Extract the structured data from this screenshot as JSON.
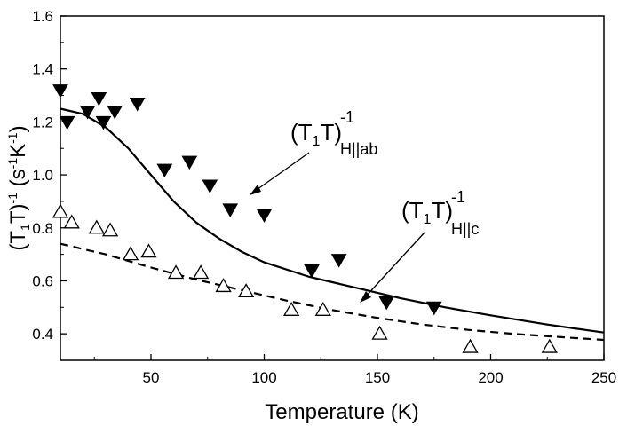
{
  "chart_data": {
    "type": "scatter",
    "xlabel": "Temperature (K)",
    "ylabel": {
      "base": "(T",
      "sub1": "1",
      "mid": "T)",
      "sup1": "-1",
      "unit_open": " (s",
      "sup2": "-1",
      "unit_k": "K",
      "sup3": "-1",
      "unit_close": ")"
    },
    "xlim": [
      10,
      250
    ],
    "ylim": [
      0.3,
      1.6
    ],
    "xticks": [
      50,
      100,
      150,
      200,
      250
    ],
    "yticks": [
      0.4,
      0.6,
      0.8,
      1.0,
      1.2,
      1.4,
      1.6
    ],
    "ytick_labels": [
      "0.4",
      "0.6",
      "0.8",
      "1.0",
      "1.2",
      "1.4",
      "1.6"
    ],
    "xtick_labels": [
      "50",
      "100",
      "150",
      "200",
      "250"
    ],
    "series": [
      {
        "name": "(T1T)^-1 H||ab",
        "marker": "filled-down-triangle",
        "x": [
          10,
          13,
          22,
          27,
          29,
          34,
          44,
          56,
          67,
          76,
          85,
          100,
          121,
          133,
          154,
          175
        ],
        "y": [
          1.32,
          1.2,
          1.24,
          1.29,
          1.2,
          1.24,
          1.27,
          1.02,
          1.05,
          0.96,
          0.87,
          0.85,
          0.64,
          0.68,
          0.52,
          0.5
        ]
      },
      {
        "name": "(T1T)^-1 H||c",
        "marker": "open-up-triangle",
        "x": [
          10,
          15,
          26,
          32,
          41,
          49,
          61,
          72,
          82,
          92,
          112,
          126,
          151,
          191,
          226
        ],
        "y": [
          0.86,
          0.82,
          0.8,
          0.79,
          0.7,
          0.71,
          0.63,
          0.63,
          0.58,
          0.56,
          0.49,
          0.49,
          0.4,
          0.35,
          0.35
        ]
      }
    ],
    "fits": [
      {
        "name": "fit H||ab",
        "style": "solid",
        "x": [
          10,
          20,
          30,
          40,
          50,
          60,
          70,
          80,
          90,
          100,
          120,
          140,
          160,
          180,
          200,
          225,
          250
        ],
        "y": [
          1.25,
          1.23,
          1.18,
          1.1,
          1.0,
          0.9,
          0.82,
          0.76,
          0.71,
          0.67,
          0.615,
          0.575,
          0.535,
          0.5,
          0.47,
          0.435,
          0.405
        ]
      },
      {
        "name": "fit H||c",
        "style": "dashed",
        "x": [
          10,
          30,
          50,
          70,
          90,
          110,
          130,
          150,
          170,
          190,
          210,
          230,
          250
        ],
        "y": [
          0.74,
          0.7,
          0.65,
          0.605,
          0.565,
          0.525,
          0.49,
          0.46,
          0.435,
          0.415,
          0.4,
          0.388,
          0.377
        ]
      }
    ],
    "annotations": [
      {
        "id": "ab",
        "text_base": "(T",
        "text_sub": "1",
        "text_mid": "T)",
        "text_sup": "-1",
        "text_subscript": "H||ab",
        "arrow_to": [
          85,
          0.93
        ]
      },
      {
        "id": "c",
        "text_base": "(T",
        "text_sub": "1",
        "text_mid": "T)",
        "text_sup": "-1",
        "text_subscript": "H||c",
        "arrow_to": [
          127,
          0.5
        ]
      }
    ]
  }
}
